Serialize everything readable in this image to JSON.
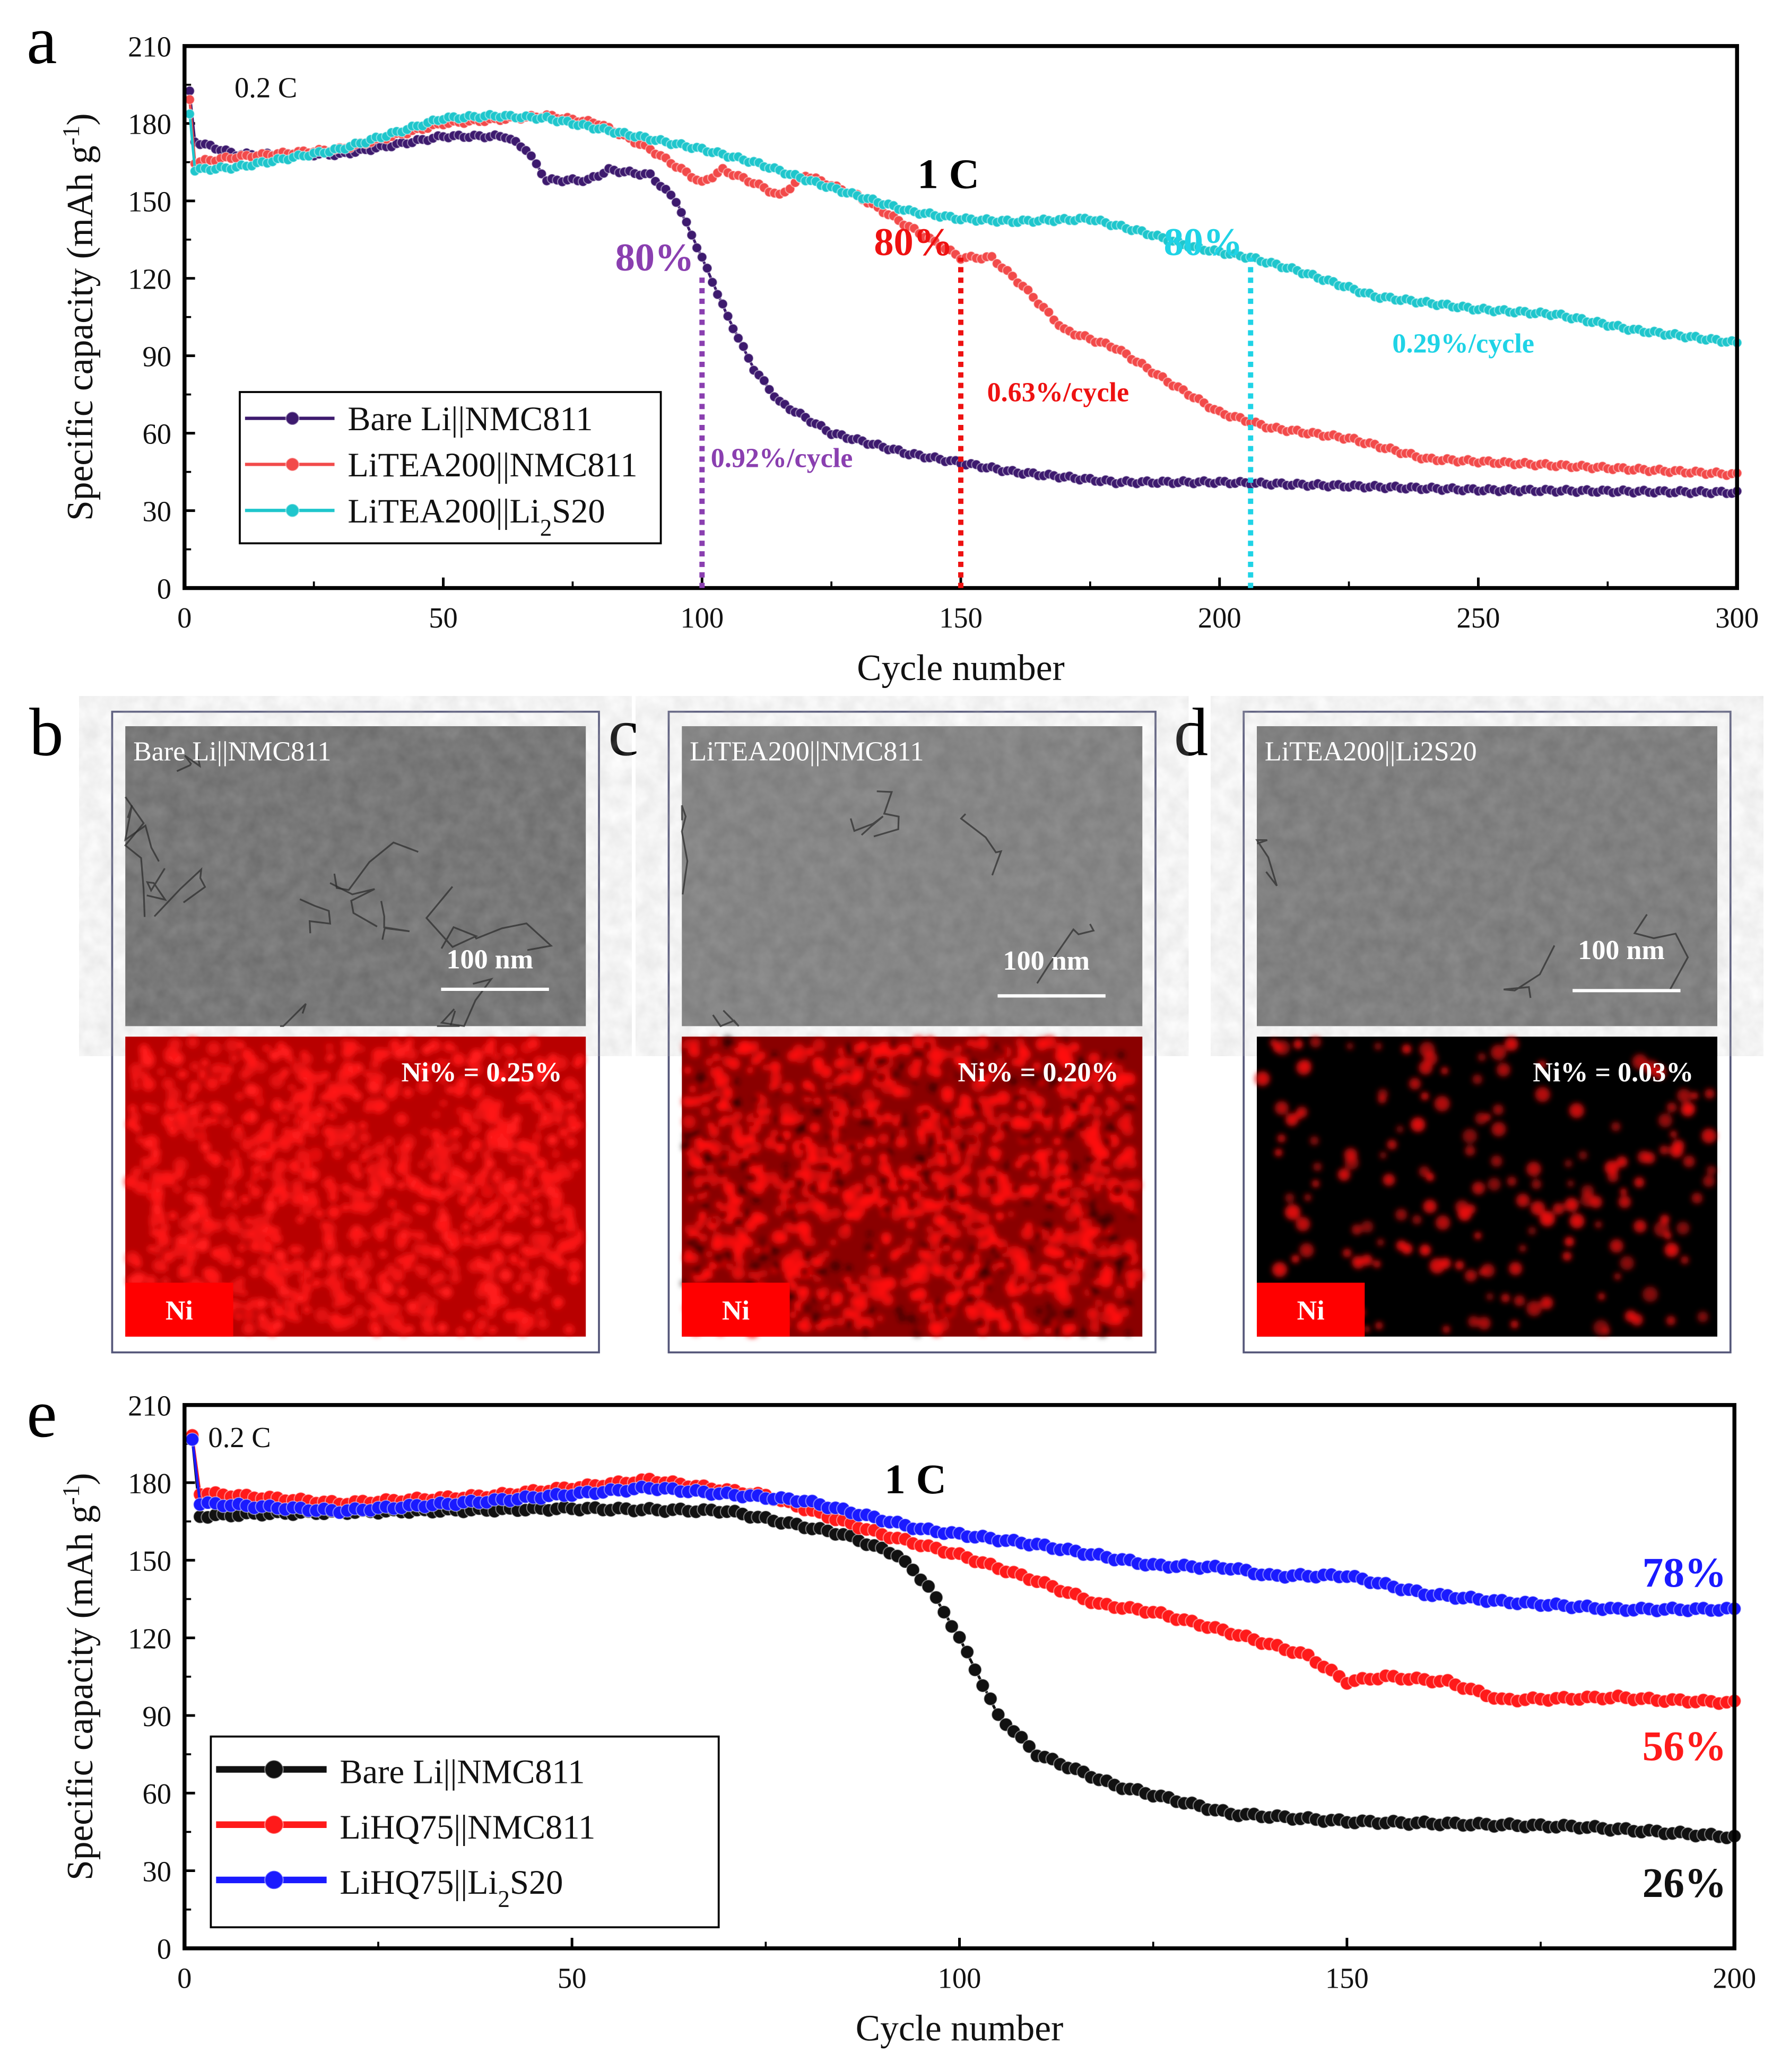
{
  "panel_labels": {
    "a": "a",
    "b": "b",
    "c": "c",
    "d": "d",
    "e": "e"
  },
  "chart_data": [
    {
      "id": "a",
      "type": "line",
      "xlabel": "Cycle number",
      "ylabel": "Specific capacity (mAh g",
      "ylabel_sup": "-1",
      "ylabel_end": ")",
      "xlim": [
        0,
        300
      ],
      "ylim": [
        0,
        210
      ],
      "xticks": [
        0,
        50,
        100,
        150,
        200,
        250,
        300
      ],
      "yticks": [
        0,
        30,
        60,
        90,
        120,
        150,
        180,
        210
      ],
      "legend_position": "lower-left",
      "rate_labels": {
        "initial": "0.2 C",
        "main": "1 C"
      },
      "series": [
        {
          "name": "Bare Li||NMC811",
          "color": "#3d1a6e",
          "points": [
            [
              1,
              192
            ],
            [
              2,
              173
            ],
            [
              10,
              168
            ],
            [
              30,
              168
            ],
            [
              50,
              175
            ],
            [
              62,
              175
            ],
            [
              66,
              170
            ],
            [
              70,
              158
            ],
            [
              78,
              158
            ],
            [
              82,
              162
            ],
            [
              90,
              160
            ],
            [
              95,
              150
            ],
            [
              100,
              128
            ],
            [
              105,
              105
            ],
            [
              110,
              85
            ],
            [
              115,
              72
            ],
            [
              125,
              60
            ],
            [
              140,
              52
            ],
            [
              160,
              45
            ],
            [
              180,
              41
            ],
            [
              200,
              41
            ],
            [
              250,
              38
            ],
            [
              300,
              37
            ]
          ]
        },
        {
          "name": "LiTEA200||NMC811",
          "color": "#f24a4a",
          "points": [
            [
              1,
              189
            ],
            [
              2,
              165
            ],
            [
              10,
              167
            ],
            [
              30,
              170
            ],
            [
              50,
              180
            ],
            [
              70,
              183
            ],
            [
              80,
              180
            ],
            [
              90,
              170
            ],
            [
              100,
              157
            ],
            [
              104,
              162
            ],
            [
              110,
              157
            ],
            [
              115,
              152
            ],
            [
              120,
              160
            ],
            [
              130,
              152
            ],
            [
              140,
              140
            ],
            [
              150,
              128
            ],
            [
              156,
              128
            ],
            [
              162,
              117
            ],
            [
              170,
              100
            ],
            [
              180,
              93
            ],
            [
              190,
              80
            ],
            [
              200,
              68
            ],
            [
              210,
              62
            ],
            [
              225,
              58
            ],
            [
              240,
              50
            ],
            [
              260,
              48
            ],
            [
              300,
              44
            ]
          ]
        },
        {
          "name": "LiTEA200||Li2S20",
          "color": "#1fc6cc",
          "points": [
            [
              1,
              184
            ],
            [
              2,
              162
            ],
            [
              10,
              163
            ],
            [
              30,
              170
            ],
            [
              50,
              182
            ],
            [
              60,
              183
            ],
            [
              70,
              182
            ],
            [
              80,
              178
            ],
            [
              90,
              174
            ],
            [
              100,
              170
            ],
            [
              110,
              165
            ],
            [
              125,
              155
            ],
            [
              140,
              146
            ],
            [
              150,
              143
            ],
            [
              160,
              142
            ],
            [
              175,
              143
            ],
            [
              185,
              138
            ],
            [
              195,
              132
            ],
            [
              206,
              128
            ],
            [
              215,
              123
            ],
            [
              230,
              113
            ],
            [
              250,
              108
            ],
            [
              265,
              106
            ],
            [
              280,
              100
            ],
            [
              300,
              95
            ]
          ]
        }
      ],
      "retention_markers": [
        {
          "label": "80%",
          "cycle": 100,
          "capacity": 122,
          "color": "#8a3fb0",
          "rate": "0.92%/cycle"
        },
        {
          "label": "80%",
          "cycle": 150,
          "capacity": 128,
          "color": "#ee1111",
          "rate": "0.63%/cycle"
        },
        {
          "label": "80%",
          "cycle": 206,
          "capacity": 128,
          "color": "#1fd3e6",
          "rate": "0.29%/cycle"
        }
      ]
    },
    {
      "id": "e",
      "type": "line",
      "xlabel": "Cycle number",
      "ylabel": "Specific capacity (mAh g",
      "ylabel_sup": "-1",
      "ylabel_end": ")",
      "xlim": [
        0,
        200
      ],
      "ylim": [
        0,
        210
      ],
      "xticks": [
        0,
        50,
        100,
        150,
        200
      ],
      "yticks": [
        0,
        30,
        60,
        90,
        120,
        150,
        180,
        210
      ],
      "legend_position": "lower-left",
      "rate_labels": {
        "initial": "0.2 C",
        "main": "1 C"
      },
      "series": [
        {
          "name": "Bare Li||NMC811",
          "color": "#111111",
          "retention": "26%",
          "points": [
            [
              1,
              197
            ],
            [
              2,
              167
            ],
            [
              10,
              168
            ],
            [
              50,
              170
            ],
            [
              70,
              169
            ],
            [
              85,
              160
            ],
            [
              92,
              152
            ],
            [
              96,
              140
            ],
            [
              100,
              120
            ],
            [
              105,
              90
            ],
            [
              110,
              75
            ],
            [
              120,
              63
            ],
            [
              135,
              52
            ],
            [
              150,
              49
            ],
            [
              180,
              47
            ],
            [
              200,
              43
            ]
          ]
        },
        {
          "name": "LiHQ75||NMC811",
          "color": "#ff1a1a",
          "retention": "56%",
          "points": [
            [
              1,
              198
            ],
            [
              2,
              176
            ],
            [
              20,
              172
            ],
            [
              40,
              175
            ],
            [
              60,
              181
            ],
            [
              75,
              175
            ],
            [
              90,
              160
            ],
            [
              100,
              152
            ],
            [
              110,
              142
            ],
            [
              118,
              133
            ],
            [
              125,
              130
            ],
            [
              135,
              122
            ],
            [
              145,
              113
            ],
            [
              150,
              103
            ],
            [
              155,
              105
            ],
            [
              163,
              103
            ],
            [
              170,
              96
            ],
            [
              185,
              97
            ],
            [
              190,
              96
            ],
            [
              200,
              95
            ]
          ]
        },
        {
          "name": "LiHQ75||Li2S20",
          "color": "#1a1aff",
          "retention": "78%",
          "points": [
            [
              1,
              197
            ],
            [
              2,
              172
            ],
            [
              20,
              169
            ],
            [
              40,
              173
            ],
            [
              60,
              178
            ],
            [
              80,
              173
            ],
            [
              95,
              162
            ],
            [
              110,
              156
            ],
            [
              125,
              148
            ],
            [
              135,
              147
            ],
            [
              140,
              144
            ],
            [
              150,
              144
            ],
            [
              160,
              137
            ],
            [
              170,
              134
            ],
            [
              185,
              131
            ],
            [
              200,
              131
            ]
          ]
        }
      ]
    }
  ],
  "micrographs": [
    {
      "panel": "b",
      "title": "Bare Li||NMC811",
      "scale_bar": "100 nm",
      "eds_label": "Ni% = 0.25%",
      "element": "Ni",
      "ni_density": 0.25
    },
    {
      "panel": "c",
      "title": "LiTEA200||NMC811",
      "scale_bar": "100 nm",
      "eds_label": "Ni% = 0.20%",
      "element": "Ni",
      "ni_density": 0.2
    },
    {
      "panel": "d",
      "title": "LiTEA200||Li2S20",
      "scale_bar": "100 nm",
      "eds_label": "Ni% = 0.03%",
      "element": "Ni",
      "ni_density": 0.03
    }
  ]
}
